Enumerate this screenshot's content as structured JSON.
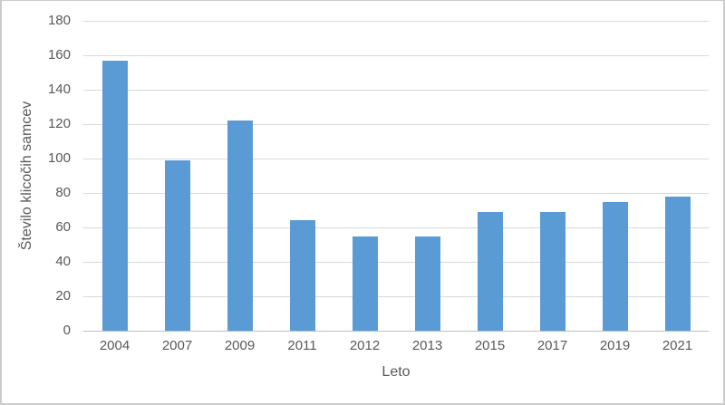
{
  "chart_data": {
    "type": "bar",
    "title": "",
    "categories": [
      "2004",
      "2007",
      "2009",
      "2011",
      "2012",
      "2013",
      "2015",
      "2017",
      "2019",
      "2021"
    ],
    "values": [
      157,
      99,
      122,
      64,
      55,
      55,
      69,
      69,
      75,
      78
    ],
    "series_name": "Število klicočih samcev",
    "xlabel": "Leto",
    "ylabel": "Število klicočih samcev",
    "ylim": [
      0,
      180
    ],
    "ytick_step": 20,
    "yticks": [
      0,
      20,
      40,
      60,
      80,
      100,
      120,
      140,
      160,
      180
    ],
    "grid": true,
    "legend": "none",
    "colors": {
      "bar_fill": "#5B9BD5",
      "gridline": "#D9D9D9",
      "axis_line": "#BFBFBF",
      "tick_text": "#595959",
      "axis_title_text": "#595959",
      "background": "#FFFFFF",
      "frame_border": "#CBCBCB"
    }
  }
}
